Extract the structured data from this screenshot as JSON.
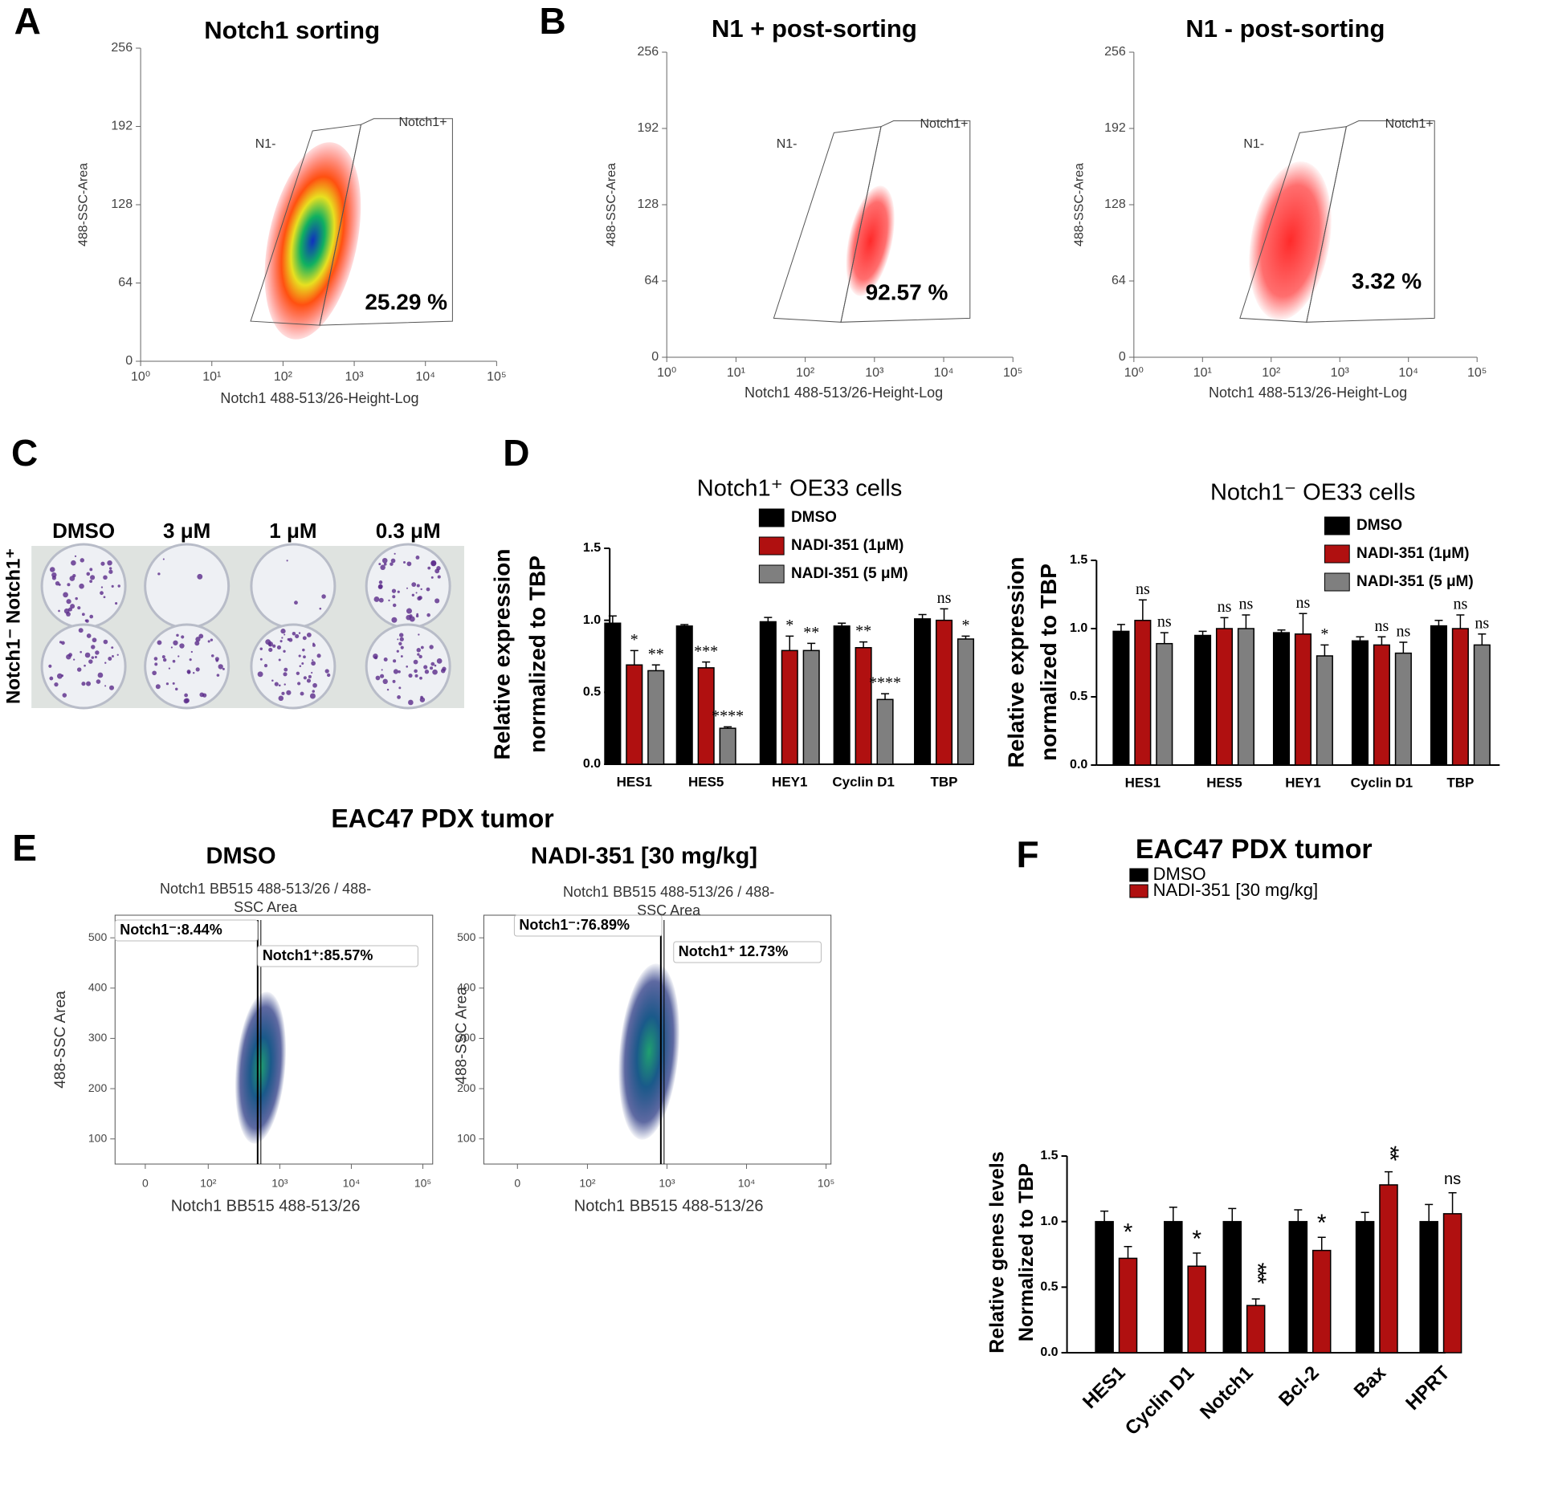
{
  "chart_data": [
    {
      "type": "flow",
      "panel": "A",
      "title": "Notch1 sorting",
      "x_label": "Notch1 488-513/26-Height-Log",
      "y_label": "488-SSC-Area",
      "xscale": "log",
      "xlim": [
        1,
        100000
      ],
      "xticks": [
        {
          "value": 1,
          "label": "10⁰"
        },
        {
          "value": 10,
          "label": "10¹"
        },
        {
          "value": 100,
          "label": "10²"
        },
        {
          "value": 1000,
          "label": "10³"
        },
        {
          "value": 10000,
          "label": "10⁴"
        },
        {
          "value": 100000,
          "label": "10⁵"
        }
      ],
      "ylim": [
        0,
        256
      ],
      "yticks": [
        0,
        64,
        128,
        192,
        256
      ],
      "gate_labels": [
        "N1-",
        "Notch1+"
      ],
      "annotations": [
        "25.29 %"
      ]
    },
    {
      "type": "flow",
      "panel": "B",
      "title": "N1 + post-sorting",
      "x_label": "Notch1 488-513/26-Height-Log",
      "y_label": "488-SSC-Area",
      "xscale": "log",
      "xlim": [
        1,
        100000
      ],
      "xticks": [
        {
          "value": 1,
          "label": "10⁰"
        },
        {
          "value": 10,
          "label": "10¹"
        },
        {
          "value": 100,
          "label": "10²"
        },
        {
          "value": 1000,
          "label": "10³"
        },
        {
          "value": 10000,
          "label": "10⁴"
        },
        {
          "value": 100000,
          "label": "10⁵"
        }
      ],
      "ylim": [
        0,
        256
      ],
      "yticks": [
        0,
        64,
        128,
        192,
        256
      ],
      "gate_labels": [
        "N1-",
        "Notch1+"
      ],
      "annotations": [
        "92.57 %"
      ]
    },
    {
      "type": "flow",
      "title": "N1 - post-sorting",
      "x_label": "Notch1 488-513/26-Height-Log",
      "y_label": "488-SSC-Area",
      "xscale": "log",
      "xlim": [
        1,
        100000
      ],
      "xticks": [
        {
          "value": 1,
          "label": "10⁰"
        },
        {
          "value": 10,
          "label": "10¹"
        },
        {
          "value": 100,
          "label": "10²"
        },
        {
          "value": 1000,
          "label": "10³"
        },
        {
          "value": 10000,
          "label": "10⁴"
        },
        {
          "value": 100000,
          "label": "10⁵"
        }
      ],
      "ylim": [
        0,
        256
      ],
      "yticks": [
        0,
        64,
        128,
        192,
        256
      ],
      "gate_labels": [
        "N1-",
        "Notch1+"
      ],
      "annotations": [
        "3.32 %"
      ]
    },
    {
      "type": "bar",
      "panel": "D",
      "title": "Notch1⁺ OE33 cells",
      "y_label": [
        "Relative expression",
        "normalized to TBP"
      ],
      "categories": [
        "HES1",
        "HES5",
        "HEY1",
        "Cyclin D1",
        "TBP"
      ],
      "ylim": [
        0,
        1.5
      ],
      "yticks": [
        {
          "value": 0,
          "label": "0.0"
        },
        {
          "value": 0.5,
          "label": "0.5"
        },
        {
          "value": 1,
          "label": "1.0"
        },
        {
          "value": 1.5,
          "label": "1.5"
        }
      ],
      "series": [
        {
          "name": "DMSO",
          "color": "#000000",
          "values": [
            0.98,
            0.96,
            0.99,
            0.96,
            1.01
          ],
          "errors": [
            0.05,
            0.01,
            0.03,
            0.02,
            0.03
          ],
          "significance": [
            null,
            null,
            null,
            null,
            null
          ]
        },
        {
          "name": "NADI-351 (1μM)",
          "color": "#b01010",
          "values": [
            0.69,
            0.67,
            0.79,
            0.81,
            1.0
          ],
          "errors": [
            0.1,
            0.04,
            0.1,
            0.04,
            0.08
          ],
          "significance": [
            "*",
            "***",
            "*",
            "**",
            "ns"
          ]
        },
        {
          "name": "NADI-351 (5 μM)",
          "color": "#7f7f7f",
          "values": [
            0.65,
            0.25,
            0.79,
            0.45,
            0.87
          ],
          "errors": [
            0.04,
            0.01,
            0.05,
            0.04,
            0.02
          ],
          "significance": [
            "**",
            "****",
            "**",
            "****",
            "*"
          ]
        }
      ]
    },
    {
      "type": "bar",
      "title": "Notch1⁻ OE33 cells",
      "y_label": [
        "Relative expression",
        "normalized to TBP"
      ],
      "categories": [
        "HES1",
        "HES5",
        "HEY1",
        "Cyclin D1",
        "TBP"
      ],
      "ylim": [
        0,
        1.5
      ],
      "yticks": [
        {
          "value": 0,
          "label": "0.0"
        },
        {
          "value": 0.5,
          "label": "0.5"
        },
        {
          "value": 1,
          "label": "1.0"
        },
        {
          "value": 1.5,
          "label": "1.5"
        }
      ],
      "series": [
        {
          "name": "DMSO",
          "color": "#000000",
          "values": [
            0.98,
            0.95,
            0.97,
            0.91,
            1.02
          ],
          "errors": [
            0.05,
            0.03,
            0.02,
            0.03,
            0.04
          ],
          "significance": [
            null,
            null,
            null,
            null,
            null
          ]
        },
        {
          "name": "NADI-351 (1μM)",
          "color": "#b01010",
          "values": [
            1.06,
            1.0,
            0.96,
            0.88,
            1.0
          ],
          "errors": [
            0.15,
            0.08,
            0.15,
            0.06,
            0.1
          ],
          "significance": [
            "ns",
            "ns",
            "ns",
            "ns",
            "ns"
          ]
        },
        {
          "name": "NADI-351 (5 μM)",
          "color": "#7f7f7f",
          "values": [
            0.89,
            1.0,
            0.8,
            0.82,
            0.88
          ],
          "errors": [
            0.08,
            0.1,
            0.08,
            0.08,
            0.08
          ],
          "significance": [
            "ns",
            "ns",
            "*",
            "ns",
            "ns"
          ]
        }
      ]
    },
    {
      "type": "flow",
      "panel": "E",
      "suptitle": "EAC47 PDX tumor",
      "title": "DMSO",
      "inner_title": [
        "Notch1 BB515 488-513/26 / 488-",
        "SSC Area"
      ],
      "x_label": "Notch1 BB515 488-513/26",
      "y_label": "488-SSC Area",
      "xscale": "biexponential",
      "xlim": [
        -48,
        100000
      ],
      "xticks": [
        0,
        {
          "value": 100,
          "label": "10²"
        },
        {
          "value": 1000,
          "label": "10³"
        },
        {
          "value": 10000,
          "label": "10⁴"
        },
        {
          "value": 100000,
          "label": "10⁵"
        }
      ],
      "ylim": [
        50,
        545
      ],
      "yticks": [
        100,
        200,
        300,
        400,
        500
      ],
      "gate_labels": [
        "Notch1⁻:8.44%",
        "Notch1⁺:85.57%"
      ]
    },
    {
      "type": "flow",
      "title": "NADI-351 [30 mg/kg]",
      "inner_title": [
        "Notch1 BB515 488-513/26 / 488-",
        "SSC Area"
      ],
      "x_label": "Notch1 BB515 488-513/26",
      "y_label": "488-SSC Area",
      "xscale": "biexponential",
      "xlim": [
        -48,
        100000
      ],
      "xticks": [
        0,
        {
          "value": 100,
          "label": "10²"
        },
        {
          "value": 1000,
          "label": "10³"
        },
        {
          "value": 10000,
          "label": "10⁴"
        },
        {
          "value": 100000,
          "label": "10⁵"
        }
      ],
      "ylim": [
        50,
        545
      ],
      "yticks": [
        100,
        200,
        300,
        400,
        500
      ],
      "gate_labels": [
        "Notch1⁻:76.89%",
        "Notch1⁺ 12.73%"
      ]
    },
    {
      "type": "bar",
      "panel": "F",
      "title": "EAC47 PDX tumor",
      "y_label": [
        "Relative genes levels",
        "Normalized to TBP"
      ],
      "categories": [
        "HES1",
        "Cyclin D1",
        "Notch1",
        "Bcl-2",
        "Bax",
        "HPRT"
      ],
      "ylim": [
        0,
        1.5
      ],
      "yticks": [
        {
          "value": 0,
          "label": "0.0"
        },
        {
          "value": 0.5,
          "label": "0.5"
        },
        {
          "value": 1,
          "label": "1.0"
        },
        {
          "value": 1.5,
          "label": "1.5"
        }
      ],
      "series": [
        {
          "name": "DMSO",
          "color": "#000000",
          "values": [
            1,
            1,
            1,
            1,
            1,
            1
          ],
          "errors": [
            0.08,
            0.11,
            0.1,
            0.09,
            0.07,
            0.13
          ],
          "significance": [
            null,
            null,
            null,
            null,
            null,
            null
          ]
        },
        {
          "name": "NADI-351 [30 mg/kg]",
          "color": "#b01010",
          "values": [
            0.72,
            0.66,
            0.36,
            0.78,
            1.28,
            1.06
          ],
          "errors": [
            0.09,
            0.1,
            0.05,
            0.1,
            0.1,
            0.16
          ],
          "significance": [
            "*",
            "*",
            "***",
            "*",
            "**",
            "ns"
          ]
        }
      ]
    }
  ],
  "colony_assay": {
    "panel": "C",
    "columns": [
      "DMSO",
      "3 μM",
      "1 μM",
      "0.3 μM"
    ],
    "rows": [
      "Notch1⁺",
      "Notch1⁻"
    ]
  }
}
